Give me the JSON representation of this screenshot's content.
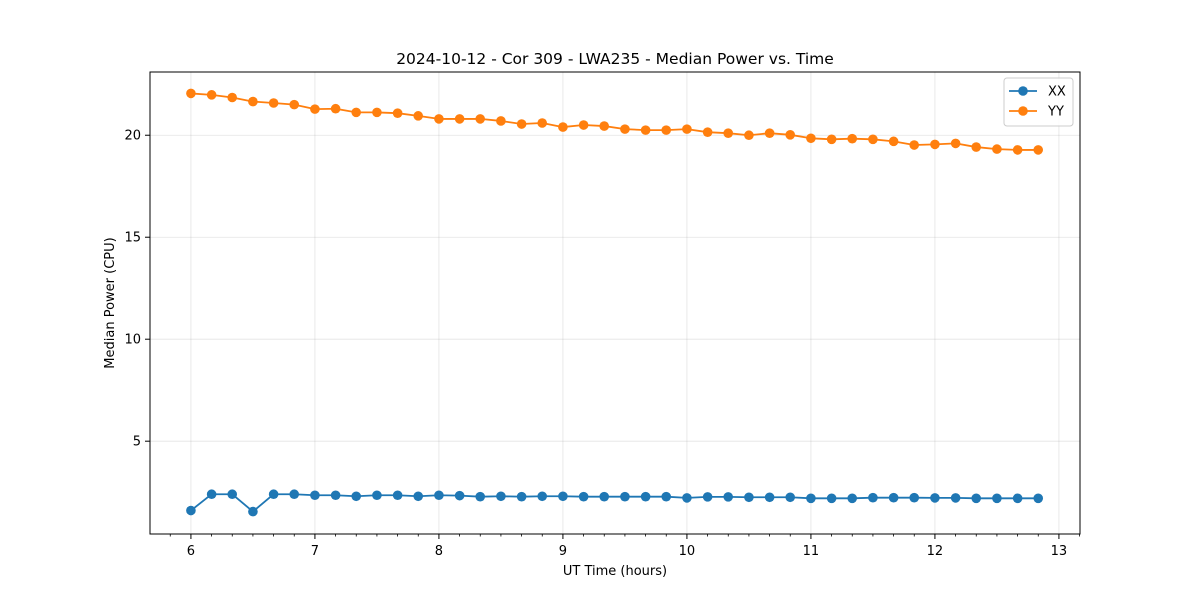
{
  "chart_data": {
    "type": "line",
    "title": "2024-10-12 - Cor 309 - LWA235 - Median Power vs. Time",
    "xlabel": "UT Time (hours)",
    "ylabel": "Median Power (CPU)",
    "xlim": [
      5.67,
      13.17
    ],
    "ylim": [
      0.45,
      23.1
    ],
    "xticks": [
      6,
      7,
      8,
      9,
      10,
      11,
      12,
      13
    ],
    "xtick_labels": [
      "6",
      "7",
      "8",
      "9",
      "10",
      "11",
      "12",
      "13"
    ],
    "yticks": [
      5,
      10,
      15,
      20
    ],
    "ytick_labels": [
      "5",
      "10",
      "15",
      "20"
    ],
    "grid": true,
    "legend_position": "top-right",
    "x": [
      6.0,
      6.167,
      6.333,
      6.5,
      6.667,
      6.833,
      7.0,
      7.167,
      7.333,
      7.5,
      7.667,
      7.833,
      8.0,
      8.167,
      8.333,
      8.5,
      8.667,
      8.833,
      9.0,
      9.167,
      9.333,
      9.5,
      9.667,
      9.833,
      10.0,
      10.167,
      10.333,
      10.5,
      10.667,
      10.833,
      11.0,
      11.167,
      11.333,
      11.5,
      11.667,
      11.833,
      12.0,
      12.167,
      12.333,
      12.5,
      12.667,
      12.833
    ],
    "series": [
      {
        "name": "XX",
        "color": "#1f77b4",
        "values": [
          1.6,
          2.4,
          2.4,
          1.55,
          2.4,
          2.4,
          2.35,
          2.35,
          2.3,
          2.35,
          2.35,
          2.3,
          2.35,
          2.33,
          2.28,
          2.3,
          2.28,
          2.3,
          2.3,
          2.28,
          2.28,
          2.28,
          2.28,
          2.28,
          2.22,
          2.27,
          2.27,
          2.25,
          2.25,
          2.25,
          2.2,
          2.2,
          2.2,
          2.23,
          2.23,
          2.23,
          2.22,
          2.22,
          2.2,
          2.2,
          2.2,
          2.2
        ]
      },
      {
        "name": "YY",
        "color": "#ff7f0e",
        "values": [
          22.05,
          21.98,
          21.85,
          21.65,
          21.58,
          21.5,
          21.28,
          21.3,
          21.12,
          21.12,
          21.08,
          20.95,
          20.8,
          20.8,
          20.8,
          20.7,
          20.55,
          20.6,
          20.4,
          20.5,
          20.45,
          20.3,
          20.25,
          20.25,
          20.3,
          20.15,
          20.1,
          20.0,
          20.1,
          20.02,
          19.85,
          19.8,
          19.83,
          19.8,
          19.7,
          19.52,
          19.55,
          19.6,
          19.42,
          19.32,
          19.28,
          19.28
        ]
      }
    ]
  }
}
